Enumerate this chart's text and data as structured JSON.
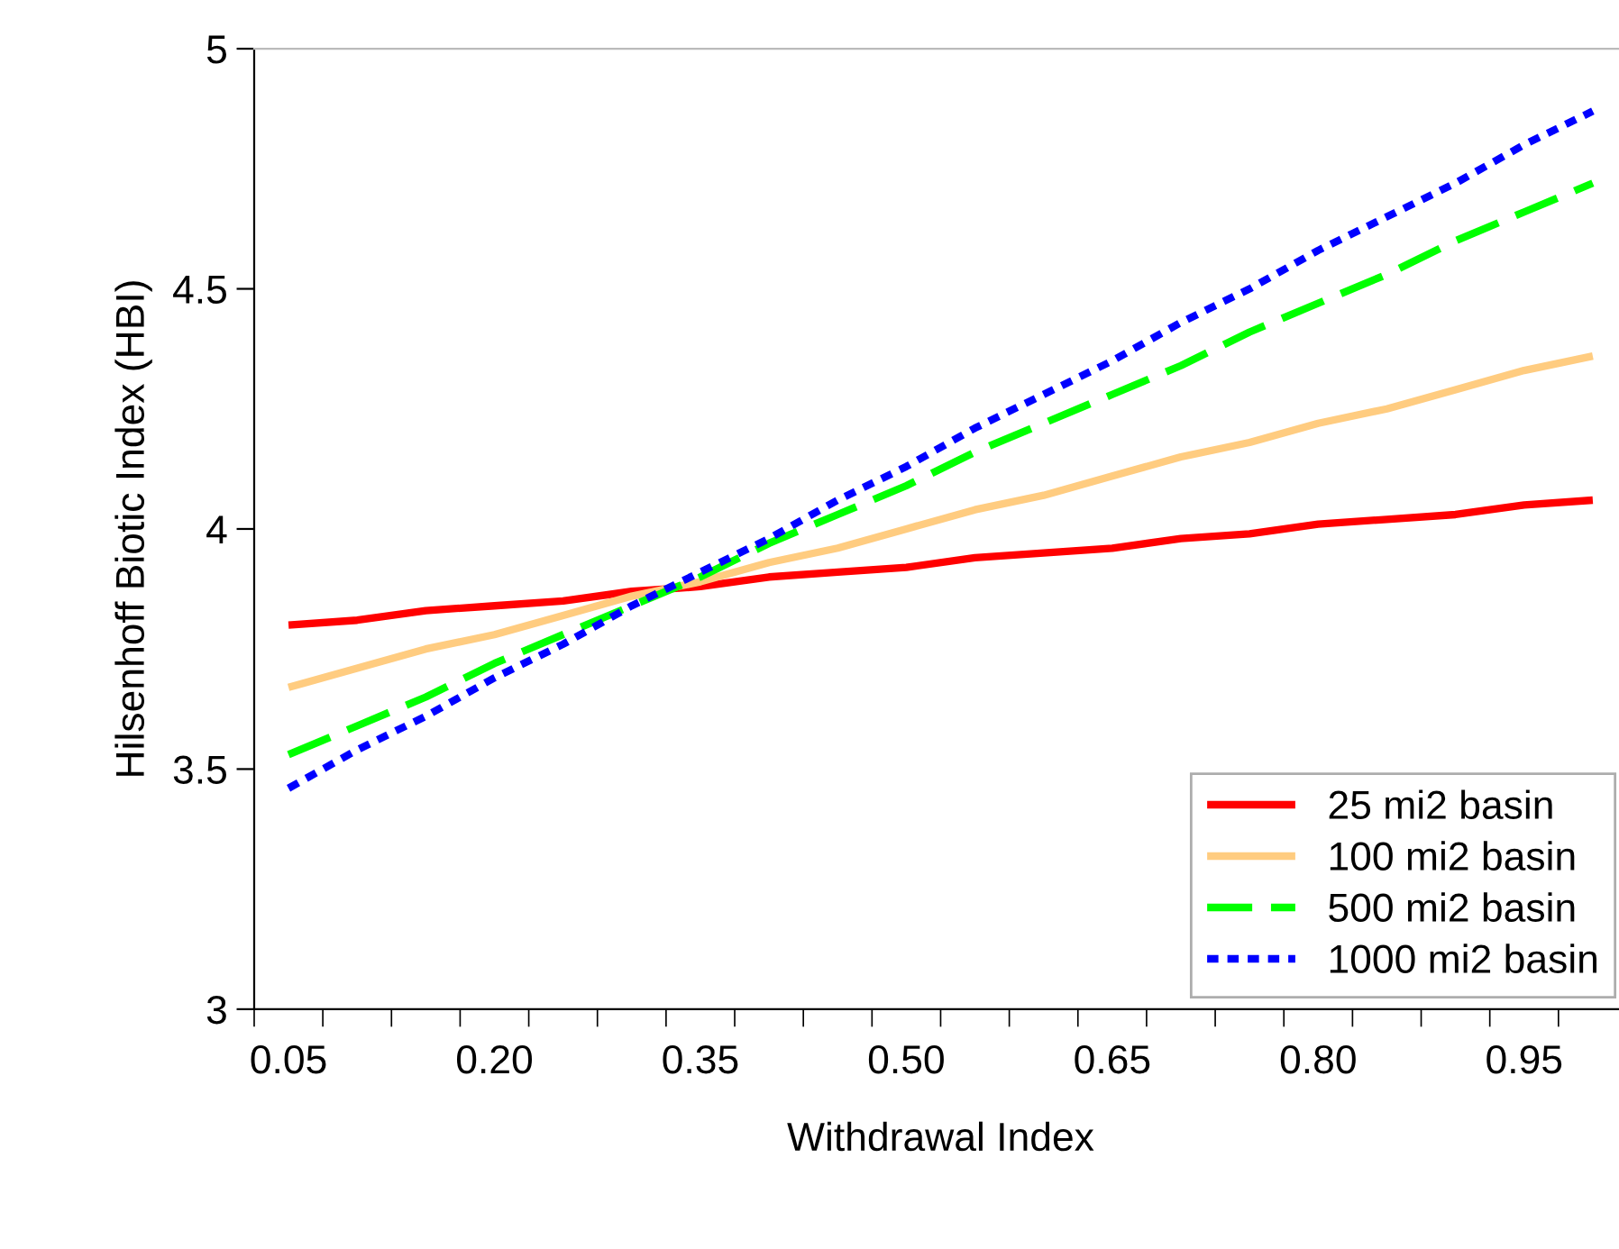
{
  "chart_data": {
    "type": "line",
    "xlabel": "Withdrawal Index",
    "ylabel": "Hilsenhoff Biotic Index (HBI)",
    "categories": [
      "0.05",
      null,
      null,
      "0.20",
      null,
      null,
      "0.35",
      null,
      null,
      "0.50",
      null,
      null,
      "0.65",
      null,
      null,
      "0.80",
      null,
      null,
      "0.95",
      null
    ],
    "series": [
      {
        "name": "25 mi2 basin",
        "color": "#ff0000",
        "line_style": "solid",
        "values": [
          3.8,
          3.81,
          3.83,
          3.84,
          3.85,
          3.87,
          3.88,
          3.9,
          3.91,
          3.92,
          3.94,
          3.95,
          3.96,
          3.98,
          3.99,
          4.01,
          4.02,
          4.03,
          4.05,
          4.06
        ]
      },
      {
        "name": "100 mi2 basin",
        "color": "#ffcc80",
        "line_style": "solid",
        "values": [
          3.67,
          3.71,
          3.75,
          3.78,
          3.82,
          3.86,
          3.89,
          3.93,
          3.96,
          4.0,
          4.04,
          4.07,
          4.11,
          4.15,
          4.18,
          4.22,
          4.25,
          4.29,
          4.33,
          4.36
        ]
      },
      {
        "name": "500 mi2 basin",
        "color": "#00ff00",
        "line_style": "dashed",
        "values": [
          3.53,
          3.59,
          3.65,
          3.72,
          3.78,
          3.84,
          3.9,
          3.97,
          4.03,
          4.09,
          4.16,
          4.22,
          4.28,
          4.34,
          4.41,
          4.47,
          4.53,
          4.6,
          4.66,
          4.72
        ]
      },
      {
        "name": "1000 mi2 basin",
        "color": "#0000ff",
        "line_style": "dotted",
        "values": [
          3.46,
          3.54,
          3.61,
          3.69,
          3.76,
          3.84,
          3.91,
          3.98,
          4.06,
          4.13,
          4.21,
          4.28,
          4.35,
          4.43,
          4.5,
          4.58,
          4.65,
          4.72,
          4.8,
          4.87
        ]
      }
    ],
    "ylim": [
      3,
      5
    ],
    "yticks": [
      3,
      3.5,
      4,
      4.5,
      5
    ],
    "legend": "bottom right",
    "grid": false
  }
}
